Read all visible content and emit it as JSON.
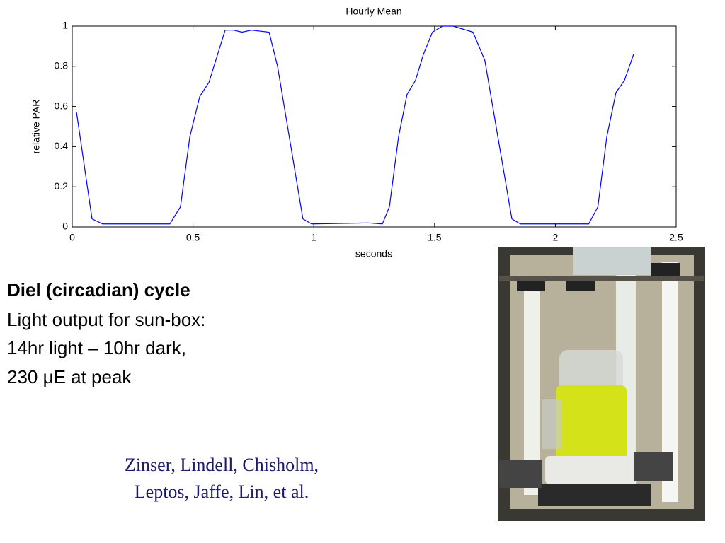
{
  "chart_data": {
    "type": "line",
    "title": "Hourly Mean",
    "xlabel": "seconds",
    "ylabel": "relative PAR",
    "x": [
      0.018,
      0.082,
      0.126,
      0.229,
      0.404,
      0.448,
      0.487,
      0.528,
      0.566,
      0.633,
      0.668,
      0.703,
      0.742,
      0.815,
      0.85,
      0.955,
      0.991,
      1.225,
      1.284,
      1.313,
      1.351,
      1.386,
      1.421,
      1.454,
      1.491,
      1.533,
      1.577,
      1.659,
      1.708,
      1.82,
      1.855,
      2.015,
      2.138,
      2.176,
      2.213,
      2.251,
      2.286,
      2.324
    ],
    "values": [
      0.57,
      0.04,
      0.015,
      0.015,
      0.015,
      0.1,
      0.45,
      0.65,
      0.72,
      0.98,
      0.98,
      0.97,
      0.98,
      0.97,
      0.8,
      0.04,
      0.015,
      0.02,
      0.015,
      0.1,
      0.45,
      0.66,
      0.73,
      0.86,
      0.97,
      1.0,
      1.0,
      0.97,
      0.83,
      0.04,
      0.015,
      0.015,
      0.015,
      0.1,
      0.45,
      0.67,
      0.73,
      0.86
    ],
    "color": "#0000ff",
    "xlim": [
      0,
      2.5
    ],
    "xticks": [
      0,
      0.5,
      1,
      1.5,
      2,
      2.5
    ],
    "ylim": [
      0,
      1
    ],
    "yticks": [
      0,
      0.2,
      0.4,
      0.6,
      0.8,
      1
    ]
  },
  "slide": {
    "heading": "Diel (circadian) cycle",
    "lines": [
      "Light output for sun-box:",
      "14hr light – 10hr dark,",
      "230 μE at peak"
    ],
    "credit": [
      "Zinser, Lindell, Chisholm,",
      "Leptos, Jaffe, Lin, et al."
    ]
  }
}
